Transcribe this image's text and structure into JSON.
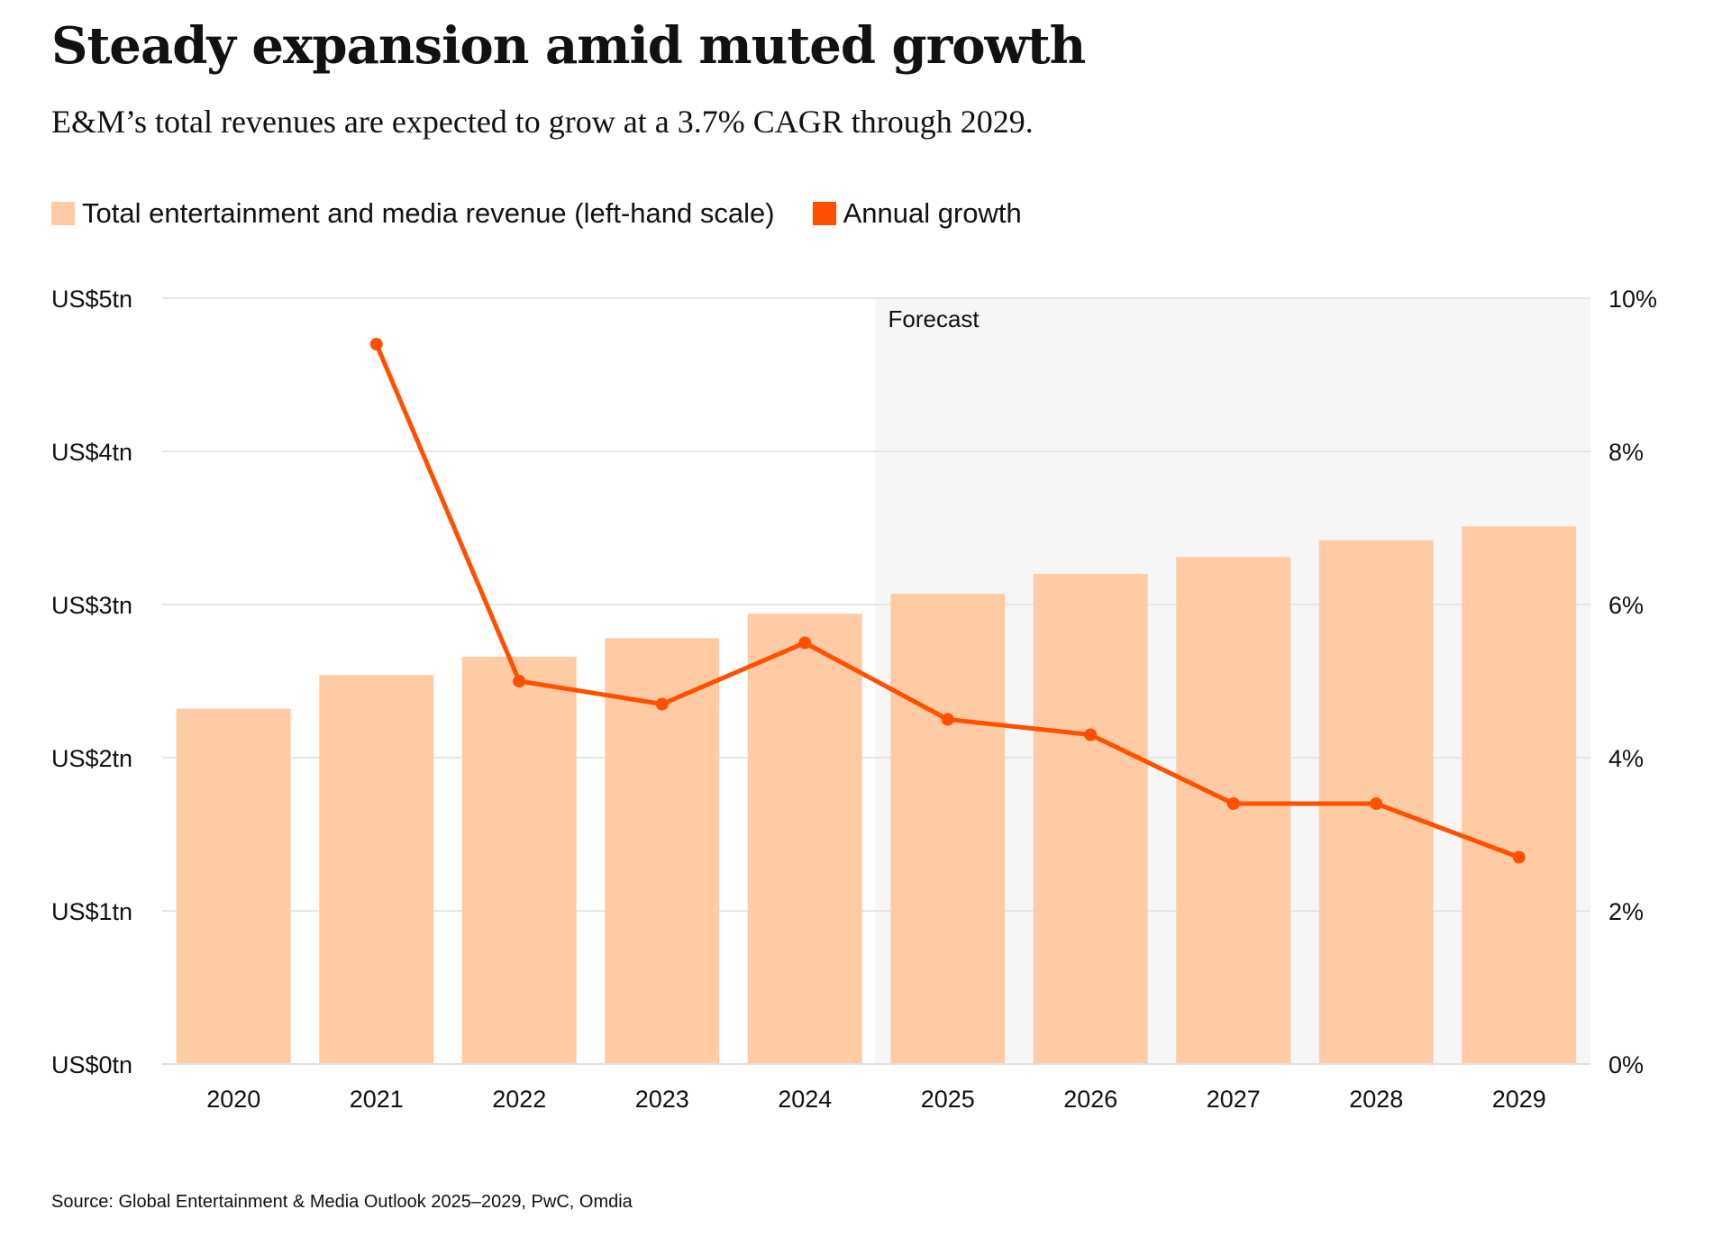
{
  "title": "Steady expansion amid muted growth",
  "subtitle": "E&M’s total revenues are expected to grow at a 3.7% CAGR through 2029.",
  "source": "Source: Global Entertainment & Media Outlook 2025–2029, PwC, Omdia",
  "colors": {
    "bar": "#FFCBA4",
    "line": "#FF5000",
    "forecast_shade": "#F6F6F6",
    "grid": "#E6E6E6"
  },
  "chart_data": {
    "type": "bar",
    "categories": [
      "2020",
      "2021",
      "2022",
      "2023",
      "2024",
      "2025",
      "2026",
      "2027",
      "2028",
      "2029"
    ],
    "series": [
      {
        "name": "Total entertainment and media revenue (left-hand scale)",
        "type": "bar",
        "axis": "left",
        "unit": "US$ trillion",
        "values": [
          2.32,
          2.54,
          2.66,
          2.78,
          2.94,
          3.07,
          3.2,
          3.31,
          3.42,
          3.51
        ]
      },
      {
        "name": "Annual growth",
        "type": "line",
        "axis": "right",
        "unit": "%",
        "values": [
          null,
          9.4,
          5.0,
          4.7,
          5.5,
          4.5,
          4.3,
          3.4,
          3.4,
          2.7
        ]
      }
    ],
    "left_axis": {
      "ylim": [
        0,
        5
      ],
      "ticks": [
        0,
        1,
        2,
        3,
        4,
        5
      ],
      "tick_labels": [
        "US$0tn",
        "US$1tn",
        "US$2tn",
        "US$3tn",
        "US$4tn",
        "US$5tn"
      ]
    },
    "right_axis": {
      "ylim": [
        0,
        10
      ],
      "ticks": [
        0,
        2,
        4,
        6,
        8,
        10
      ],
      "tick_labels": [
        "0%",
        "2%",
        "4%",
        "6%",
        "8%",
        "10%"
      ]
    },
    "forecast": {
      "label": "Forecast",
      "from_category": "2025",
      "to_category": "2029"
    },
    "grid": true,
    "legend_position": "top-left"
  }
}
